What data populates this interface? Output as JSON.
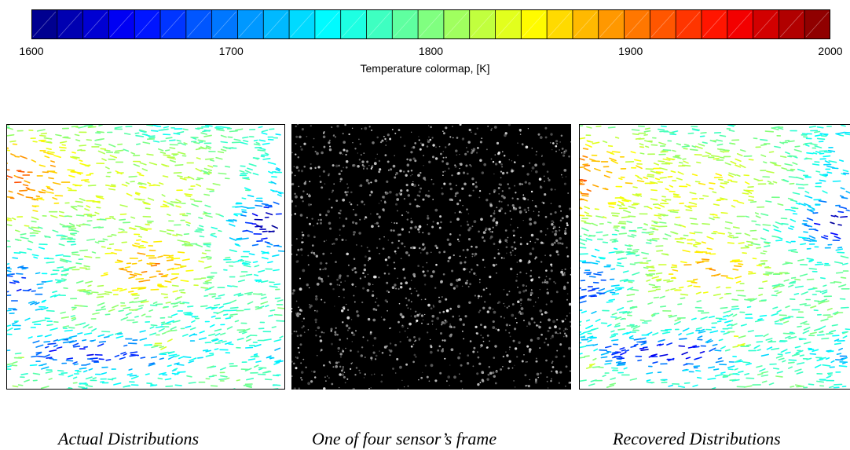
{
  "colorbar": {
    "title": "Temperature colormap, [K]",
    "min": 1600,
    "max": 2000,
    "segments": 31,
    "ticks": [
      "1600",
      "1700",
      "1800",
      "1900",
      "2000"
    ],
    "tick_values": [
      1600,
      1700,
      1800,
      1900,
      2000
    ],
    "colormap": "jet"
  },
  "panels": {
    "actual": {
      "caption": "Actual Distributions"
    },
    "sensor": {
      "caption": "One of four sensor’s frame"
    },
    "recovered": {
      "caption": "Recovered Distributions"
    }
  },
  "colors": {
    "background": "#ffffff",
    "sensor_background": "#000000",
    "frame": "#000000"
  }
}
